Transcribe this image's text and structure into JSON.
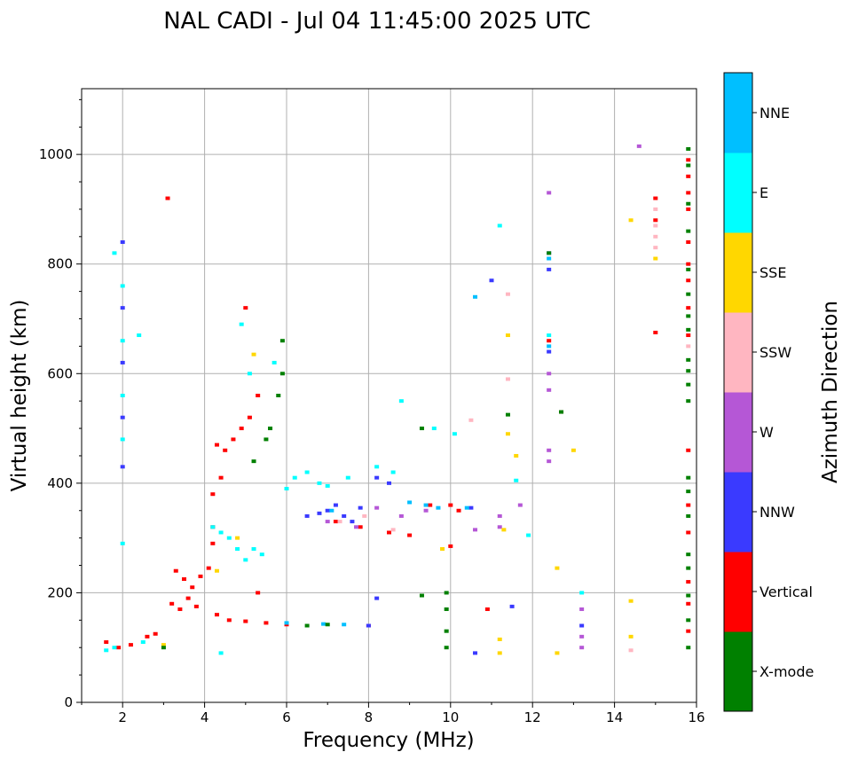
{
  "chart_data": {
    "type": "scatter",
    "title": "NAL CADI - Jul 04 11:45:00 2025 UTC",
    "xlabel": "Frequency (MHz)",
    "ylabel": "Virtual height (km)",
    "xlim": [
      1,
      16
    ],
    "ylim": [
      0,
      1120
    ],
    "xticks": [
      2,
      4,
      6,
      8,
      10,
      12,
      14,
      16
    ],
    "yticks": [
      0,
      200,
      400,
      600,
      800,
      1000
    ],
    "grid": true,
    "colorbar": {
      "label": "Azimuth Direction",
      "categories": [
        {
          "name": "X-mode",
          "color": "#008000"
        },
        {
          "name": "Vertical",
          "color": "#ff0000"
        },
        {
          "name": "NNW",
          "color": "#3a3aff"
        },
        {
          "name": "W",
          "color": "#b557d6"
        },
        {
          "name": "SSW",
          "color": "#ffb6c1"
        },
        {
          "name": "SSE",
          "color": "#ffd700"
        },
        {
          "name": "E",
          "color": "#00ffff"
        },
        {
          "name": "NNE",
          "color": "#00bfff"
        }
      ]
    },
    "series": [
      {
        "name": "Vertical",
        "points": [
          [
            3.1,
            920
          ],
          [
            3.3,
            240
          ],
          [
            3.5,
            225
          ],
          [
            3.7,
            210
          ],
          [
            3.9,
            230
          ],
          [
            4.1,
            245
          ],
          [
            3.2,
            180
          ],
          [
            3.4,
            170
          ],
          [
            3.6,
            190
          ],
          [
            3.8,
            175
          ],
          [
            4.3,
            160
          ],
          [
            4.6,
            150
          ],
          [
            5.0,
            148
          ],
          [
            5.5,
            145
          ],
          [
            6.0,
            142
          ],
          [
            4.3,
            470
          ],
          [
            4.5,
            460
          ],
          [
            4.7,
            480
          ],
          [
            4.9,
            500
          ],
          [
            5.1,
            520
          ],
          [
            5.3,
            560
          ],
          [
            4.4,
            410
          ],
          [
            4.2,
            380
          ],
          [
            4.2,
            320
          ],
          [
            4.2,
            290
          ],
          [
            5.0,
            720
          ],
          [
            1.6,
            110
          ],
          [
            1.9,
            100
          ],
          [
            2.2,
            105
          ],
          [
            2.6,
            120
          ],
          [
            2.8,
            125
          ],
          [
            8.0,
            140
          ],
          [
            7.2,
            330
          ],
          [
            7.8,
            320
          ],
          [
            8.5,
            310
          ],
          [
            9.0,
            305
          ],
          [
            9.5,
            360
          ],
          [
            10.0,
            360
          ],
          [
            10.2,
            350
          ],
          [
            12.4,
            660
          ],
          [
            12.7,
            530
          ],
          [
            15.0,
            920
          ],
          [
            15.0,
            880
          ],
          [
            15.0,
            675
          ],
          [
            15.8,
            990
          ],
          [
            15.8,
            960
          ],
          [
            15.8,
            930
          ],
          [
            15.8,
            900
          ],
          [
            15.8,
            840
          ],
          [
            15.8,
            800
          ],
          [
            15.8,
            770
          ],
          [
            15.8,
            720
          ],
          [
            15.8,
            670
          ],
          [
            15.8,
            460
          ],
          [
            15.8,
            360
          ],
          [
            15.8,
            310
          ],
          [
            15.8,
            220
          ],
          [
            15.8,
            180
          ],
          [
            15.8,
            130
          ],
          [
            10.0,
            285
          ],
          [
            10.9,
            170
          ],
          [
            5.3,
            200
          ]
        ]
      },
      {
        "name": "NNW",
        "points": [
          [
            2.0,
            840
          ],
          [
            2.0,
            720
          ],
          [
            2.0,
            620
          ],
          [
            2.0,
            520
          ],
          [
            2.0,
            430
          ],
          [
            6.5,
            340
          ],
          [
            6.8,
            345
          ],
          [
            7.0,
            350
          ],
          [
            7.2,
            360
          ],
          [
            7.4,
            340
          ],
          [
            7.6,
            330
          ],
          [
            8.2,
            410
          ],
          [
            8.5,
            400
          ],
          [
            8.2,
            190
          ],
          [
            8.0,
            140
          ],
          [
            11.5,
            175
          ],
          [
            12.4,
            820
          ],
          [
            12.4,
            790
          ],
          [
            12.4,
            640
          ],
          [
            13.2,
            140
          ],
          [
            10.6,
            90
          ],
          [
            11.0,
            770
          ],
          [
            10.5,
            355
          ],
          [
            7.8,
            355
          ]
        ]
      },
      {
        "name": "W",
        "points": [
          [
            12.4,
            930
          ],
          [
            12.4,
            600
          ],
          [
            12.4,
            570
          ],
          [
            12.4,
            440
          ],
          [
            12.4,
            460
          ],
          [
            13.2,
            170
          ],
          [
            13.2,
            120
          ],
          [
            13.2,
            100
          ],
          [
            14.6,
            1015
          ],
          [
            7.0,
            330
          ],
          [
            7.7,
            320
          ],
          [
            8.2,
            355
          ],
          [
            8.8,
            340
          ],
          [
            9.4,
            350
          ],
          [
            11.2,
            340
          ],
          [
            11.7,
            360
          ],
          [
            10.6,
            315
          ],
          [
            11.2,
            320
          ]
        ]
      },
      {
        "name": "SSW",
        "points": [
          [
            15.0,
            870
          ],
          [
            15.0,
            850
          ],
          [
            15.0,
            830
          ],
          [
            15.8,
            650
          ],
          [
            14.4,
            95
          ],
          [
            7.3,
            330
          ],
          [
            7.9,
            340
          ],
          [
            8.6,
            315
          ],
          [
            11.4,
            745
          ],
          [
            11.4,
            590
          ],
          [
            10.5,
            515
          ],
          [
            15.0,
            900
          ]
        ]
      },
      {
        "name": "SSE",
        "points": [
          [
            11.4,
            670
          ],
          [
            11.4,
            490
          ],
          [
            11.6,
            450
          ],
          [
            12.6,
            245
          ],
          [
            12.6,
            90
          ],
          [
            13.0,
            460
          ],
          [
            14.4,
            880
          ],
          [
            14.4,
            185
          ],
          [
            14.4,
            120
          ],
          [
            15.0,
            810
          ],
          [
            11.3,
            315
          ],
          [
            5.2,
            635
          ],
          [
            4.3,
            240
          ],
          [
            4.8,
            300
          ],
          [
            3.0,
            105
          ],
          [
            9.8,
            280
          ],
          [
            11.2,
            115
          ],
          [
            11.2,
            90
          ]
        ]
      },
      {
        "name": "E",
        "points": [
          [
            1.8,
            820
          ],
          [
            2.0,
            760
          ],
          [
            2.0,
            660
          ],
          [
            2.0,
            560
          ],
          [
            2.0,
            480
          ],
          [
            2.0,
            290
          ],
          [
            2.4,
            670
          ],
          [
            1.6,
            95
          ],
          [
            1.8,
            100
          ],
          [
            2.5,
            110
          ],
          [
            4.4,
            310
          ],
          [
            4.6,
            300
          ],
          [
            4.8,
            280
          ],
          [
            5.0,
            260
          ],
          [
            5.2,
            280
          ],
          [
            5.4,
            270
          ],
          [
            4.2,
            320
          ],
          [
            6.0,
            390
          ],
          [
            6.2,
            410
          ],
          [
            6.5,
            420
          ],
          [
            6.8,
            400
          ],
          [
            7.0,
            395
          ],
          [
            7.5,
            410
          ],
          [
            8.2,
            430
          ],
          [
            8.6,
            420
          ],
          [
            8.8,
            550
          ],
          [
            9.6,
            500
          ],
          [
            10.1,
            490
          ],
          [
            11.2,
            870
          ],
          [
            11.9,
            305
          ],
          [
            13.2,
            200
          ],
          [
            4.9,
            690
          ],
          [
            5.1,
            600
          ],
          [
            5.7,
            620
          ],
          [
            4.4,
            90
          ],
          [
            12.4,
            670
          ],
          [
            11.6,
            405
          ]
        ]
      },
      {
        "name": "NNE",
        "points": [
          [
            12.4,
            810
          ],
          [
            12.4,
            650
          ],
          [
            10.6,
            740
          ],
          [
            9.0,
            365
          ],
          [
            9.4,
            360
          ],
          [
            9.7,
            355
          ],
          [
            10.4,
            355
          ],
          [
            7.1,
            350
          ],
          [
            6.0,
            145
          ],
          [
            6.9,
            143
          ],
          [
            7.4,
            142
          ]
        ]
      },
      {
        "name": "X-mode",
        "points": [
          [
            5.5,
            480
          ],
          [
            5.6,
            500
          ],
          [
            5.8,
            560
          ],
          [
            5.9,
            600
          ],
          [
            5.9,
            660
          ],
          [
            5.2,
            440
          ],
          [
            9.3,
            500
          ],
          [
            9.3,
            195
          ],
          [
            9.9,
            200
          ],
          [
            9.9,
            170
          ],
          [
            9.9,
            130
          ],
          [
            9.9,
            100
          ],
          [
            12.4,
            820
          ],
          [
            12.7,
            530
          ],
          [
            15.8,
            1010
          ],
          [
            15.8,
            980
          ],
          [
            15.8,
            910
          ],
          [
            15.8,
            860
          ],
          [
            15.8,
            790
          ],
          [
            15.8,
            745
          ],
          [
            15.8,
            705
          ],
          [
            15.8,
            680
          ],
          [
            15.8,
            625
          ],
          [
            15.8,
            605
          ],
          [
            15.8,
            580
          ],
          [
            15.8,
            550
          ],
          [
            15.8,
            410
          ],
          [
            15.8,
            385
          ],
          [
            15.8,
            340
          ],
          [
            15.8,
            270
          ],
          [
            15.8,
            245
          ],
          [
            15.8,
            195
          ],
          [
            15.8,
            150
          ],
          [
            15.8,
            100
          ],
          [
            6.5,
            140
          ],
          [
            7.0,
            142
          ],
          [
            3.0,
            100
          ],
          [
            11.4,
            525
          ]
        ]
      }
    ]
  }
}
